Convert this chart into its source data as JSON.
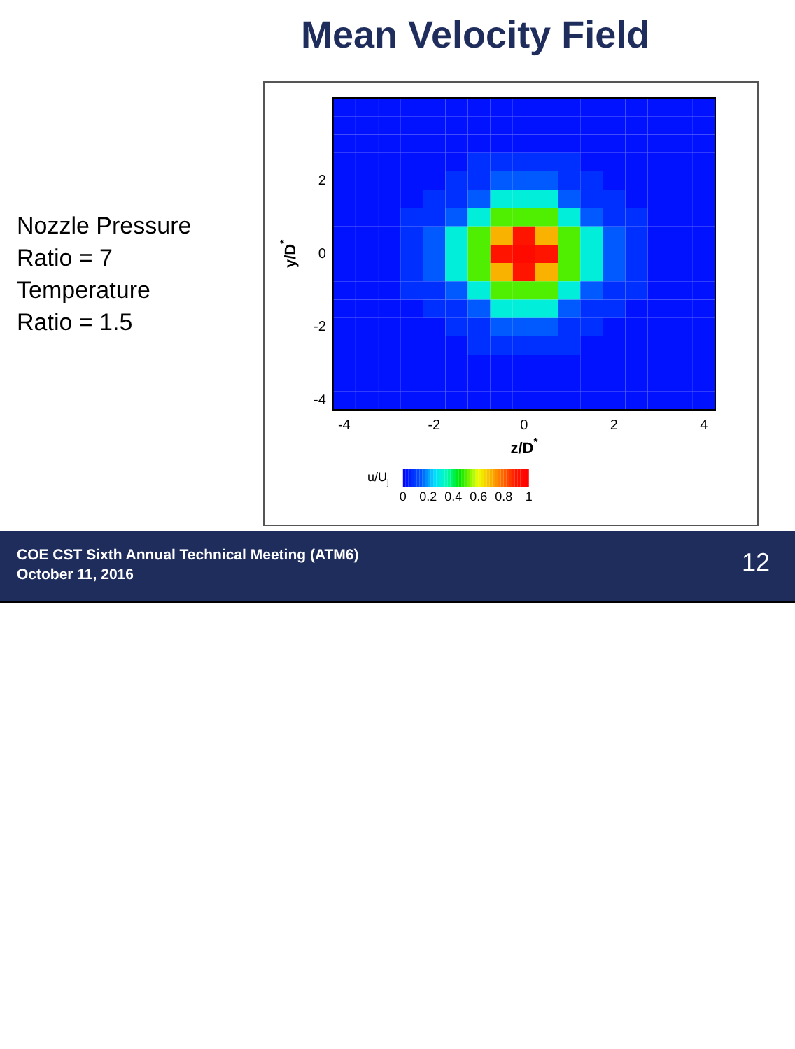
{
  "chart_data": {
    "type": "heatmap",
    "title": "Mean Velocity Field",
    "xlabel": "z/D$^{*}$",
    "ylabel": "y/D$^{*}$",
    "clabel": "u/U$_{j}$",
    "categories": [
      "-4",
      null,
      null,
      null,
      "-2",
      null,
      null,
      null,
      "0",
      null,
      null,
      null,
      "2",
      null,
      null,
      null,
      "4"
    ],
    "y_categories": [
      null,
      null,
      null,
      null,
      "2",
      null,
      null,
      null,
      "0",
      null,
      null,
      null,
      "-2",
      null,
      null,
      null,
      "-4"
    ],
    "cells": [
      [
        0.03,
        0.03,
        0.03,
        0.03,
        0.03,
        0.03,
        0.03,
        0.03,
        0.03,
        0.03,
        0.03,
        0.03,
        0.03,
        0.03,
        0.03,
        0.03,
        0.03
      ],
      [
        0.03,
        0.03,
        0.03,
        0.03,
        0.03,
        0.03,
        0.03,
        0.03,
        0.03,
        0.03,
        0.03,
        0.03,
        0.03,
        0.03,
        0.03,
        0.03,
        0.03
      ],
      [
        0.03,
        0.03,
        0.03,
        0.03,
        0.03,
        0.03,
        0.03,
        0.03,
        0.03,
        0.03,
        0.03,
        0.03,
        0.03,
        0.03,
        0.03,
        0.03,
        0.03
      ],
      [
        0.03,
        0.03,
        0.03,
        0.03,
        0.03,
        0.03,
        0.08,
        0.08,
        0.08,
        0.08,
        0.08,
        0.03,
        0.03,
        0.03,
        0.03,
        0.03,
        0.03
      ],
      [
        0.03,
        0.03,
        0.03,
        0.03,
        0.03,
        0.08,
        0.08,
        0.15,
        0.15,
        0.15,
        0.08,
        0.08,
        0.03,
        0.03,
        0.03,
        0.03,
        0.03
      ],
      [
        0.03,
        0.03,
        0.03,
        0.03,
        0.08,
        0.08,
        0.15,
        0.3,
        0.3,
        0.3,
        0.15,
        0.08,
        0.08,
        0.03,
        0.03,
        0.03,
        0.03
      ],
      [
        0.03,
        0.03,
        0.03,
        0.08,
        0.08,
        0.15,
        0.3,
        0.5,
        0.5,
        0.5,
        0.3,
        0.15,
        0.08,
        0.08,
        0.03,
        0.03,
        0.03
      ],
      [
        0.03,
        0.03,
        0.03,
        0.08,
        0.15,
        0.3,
        0.5,
        0.7,
        0.9,
        0.7,
        0.5,
        0.3,
        0.15,
        0.08,
        0.03,
        0.03,
        0.03
      ],
      [
        0.03,
        0.03,
        0.03,
        0.08,
        0.15,
        0.3,
        0.5,
        0.9,
        0.95,
        0.9,
        0.5,
        0.3,
        0.15,
        0.08,
        0.03,
        0.03,
        0.03
      ],
      [
        0.03,
        0.03,
        0.03,
        0.08,
        0.15,
        0.3,
        0.5,
        0.7,
        0.9,
        0.7,
        0.5,
        0.3,
        0.15,
        0.08,
        0.03,
        0.03,
        0.03
      ],
      [
        0.03,
        0.03,
        0.03,
        0.08,
        0.08,
        0.15,
        0.3,
        0.5,
        0.5,
        0.5,
        0.3,
        0.15,
        0.08,
        0.08,
        0.03,
        0.03,
        0.03
      ],
      [
        0.03,
        0.03,
        0.03,
        0.03,
        0.08,
        0.08,
        0.15,
        0.3,
        0.3,
        0.3,
        0.15,
        0.08,
        0.08,
        0.03,
        0.03,
        0.03,
        0.03
      ],
      [
        0.03,
        0.03,
        0.03,
        0.03,
        0.03,
        0.08,
        0.08,
        0.15,
        0.15,
        0.15,
        0.08,
        0.08,
        0.03,
        0.03,
        0.03,
        0.03,
        0.03
      ],
      [
        0.03,
        0.03,
        0.03,
        0.03,
        0.03,
        0.03,
        0.08,
        0.08,
        0.08,
        0.08,
        0.08,
        0.03,
        0.03,
        0.03,
        0.03,
        0.03,
        0.03
      ],
      [
        0.03,
        0.03,
        0.03,
        0.03,
        0.03,
        0.03,
        0.03,
        0.03,
        0.03,
        0.03,
        0.03,
        0.03,
        0.03,
        0.03,
        0.03,
        0.03,
        0.03
      ],
      [
        0.03,
        0.03,
        0.03,
        0.03,
        0.03,
        0.03,
        0.03,
        0.03,
        0.03,
        0.03,
        0.03,
        0.03,
        0.03,
        0.03,
        0.03,
        0.03,
        0.03
      ],
      [
        0.03,
        0.03,
        0.03,
        0.03,
        0.03,
        0.03,
        0.03,
        0.03,
        0.03,
        0.03,
        0.03,
        0.03,
        0.03,
        0.03,
        0.03,
        0.03,
        0.03
      ]
    ],
    "clim": [
      0,
      1
    ],
    "cticks": [
      0,
      0.2,
      0.4,
      0.6,
      0.8,
      1
    ],
    "annotations": [
      "Nozzle Pressure\nRatio = 7\nTemperature\nRatio = 1.5",
      "COE CST Sixth Annual Technical Meeting (ATM6)\nOctober 11, 2016",
      "12"
    ]
  }
}
